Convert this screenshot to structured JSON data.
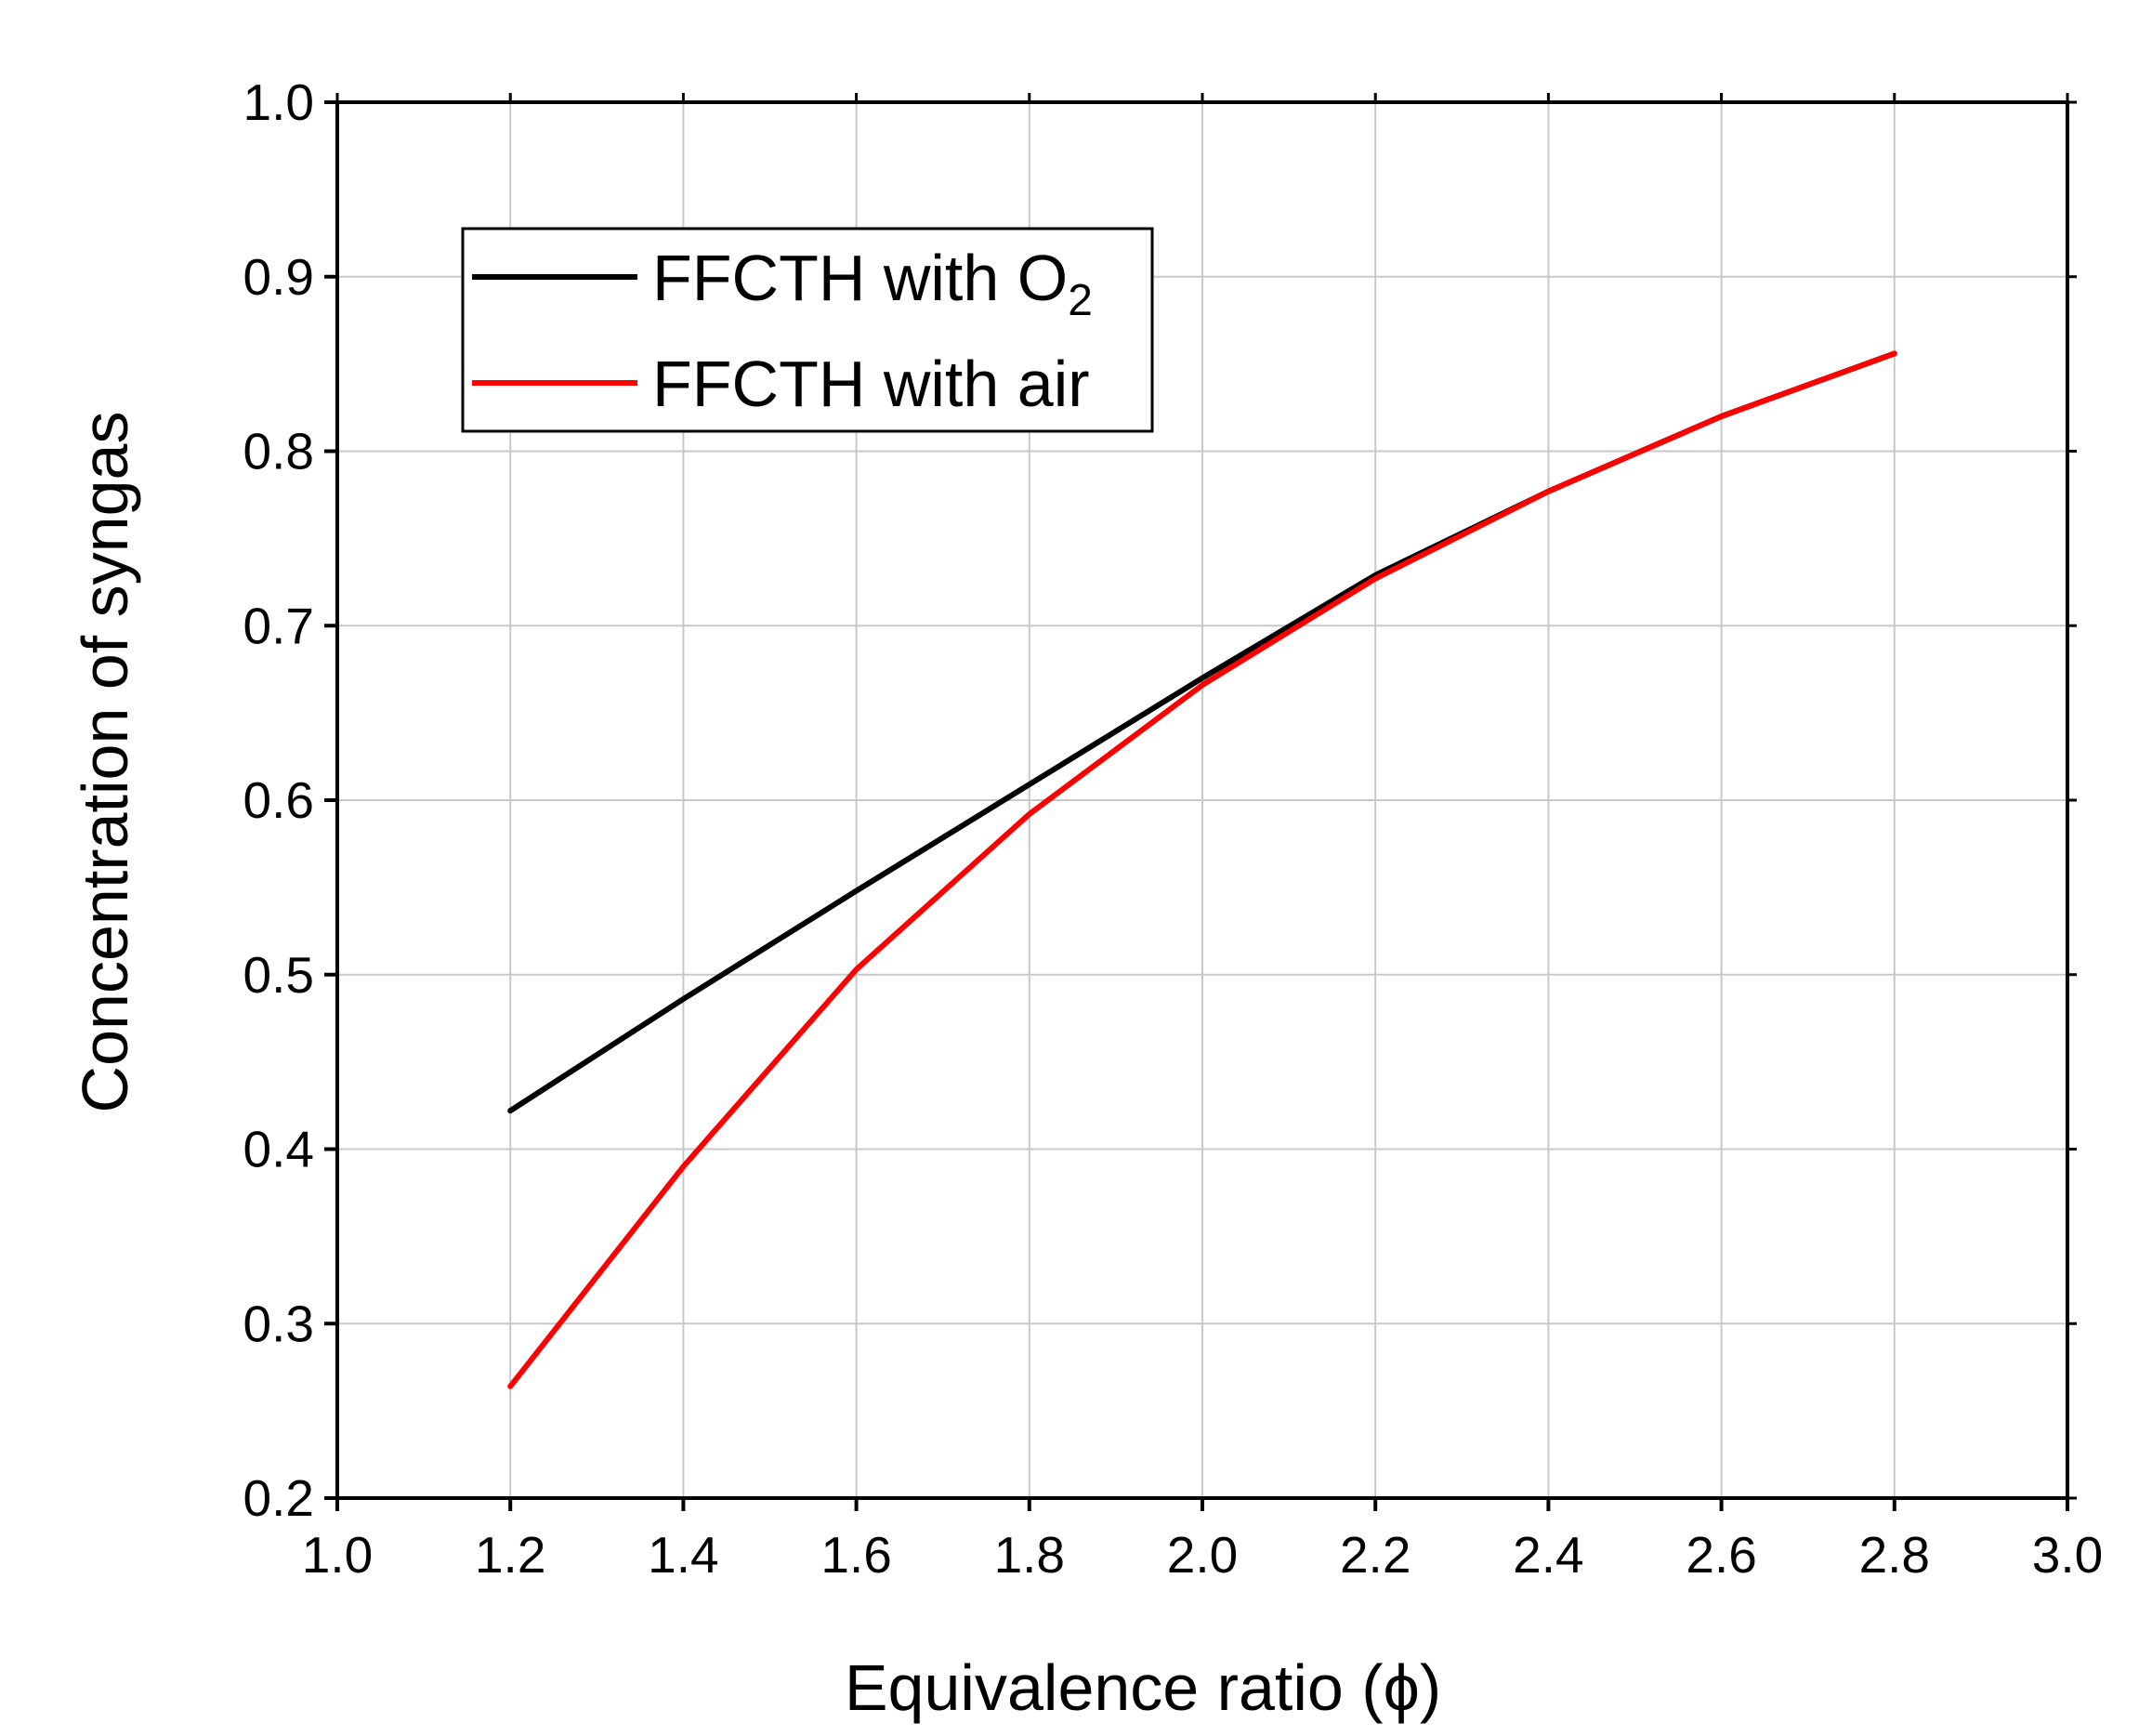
{
  "chart_data": {
    "type": "line",
    "title": "",
    "xlabel": "Equivalence ratio (ϕ)",
    "ylabel": "Concentration of syngas",
    "xlim": [
      1.0,
      3.0
    ],
    "ylim": [
      0.2,
      1.0
    ],
    "x_ticks": [
      "1.0",
      "1.2",
      "1.4",
      "1.6",
      "1.8",
      "2.0",
      "2.2",
      "2.4",
      "2.6",
      "2.8",
      "3.0"
    ],
    "y_ticks": [
      "0.2",
      "0.3",
      "0.4",
      "0.5",
      "0.6",
      "0.7",
      "0.8",
      "0.9",
      "1.0"
    ],
    "grid": true,
    "legend_position": "top-left",
    "series": [
      {
        "name": "FFCTH with O2",
        "legend_main": "FFCTH with O",
        "legend_sub": "2",
        "color": "#000000",
        "x": [
          1.2,
          1.4,
          1.6,
          1.8,
          2.0,
          2.2,
          2.4,
          2.6,
          2.8
        ],
        "y": [
          0.422,
          0.486,
          0.548,
          0.609,
          0.67,
          0.729,
          0.777,
          0.82,
          0.856
        ]
      },
      {
        "name": "FFCTH with air",
        "color": "#ff0000",
        "x": [
          1.2,
          1.4,
          1.6,
          1.8,
          2.0,
          2.2,
          2.4,
          2.6,
          2.8
        ],
        "y": [
          0.264,
          0.39,
          0.503,
          0.592,
          0.666,
          0.727,
          0.777,
          0.82,
          0.856
        ]
      }
    ]
  }
}
